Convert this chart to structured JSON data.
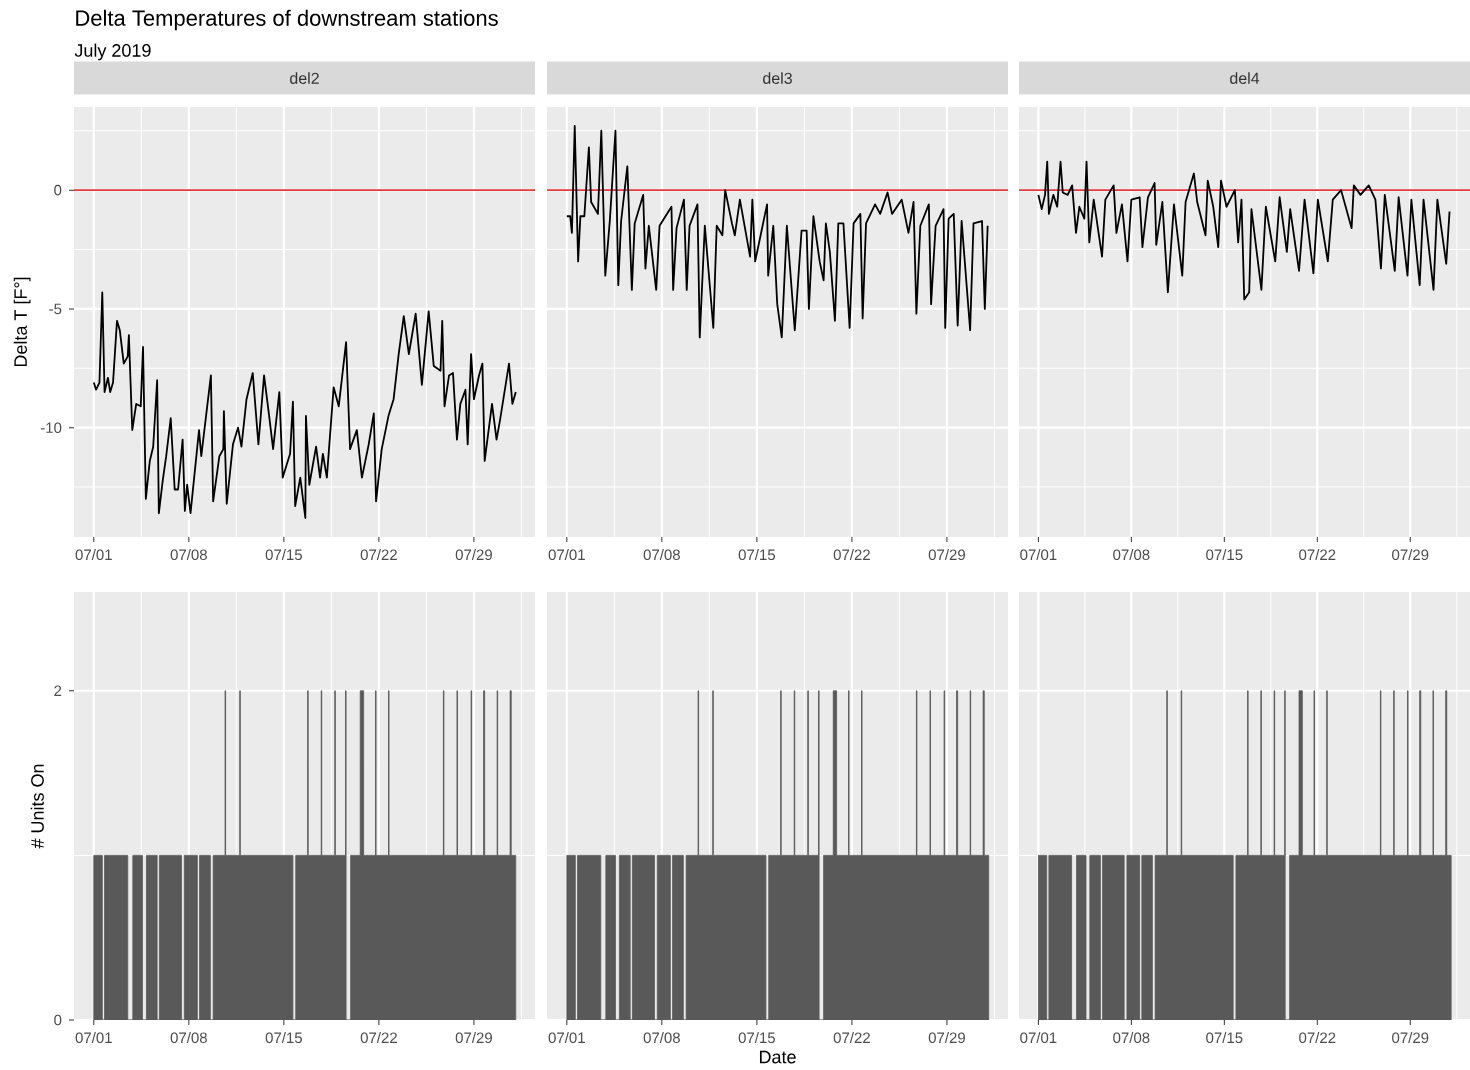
{
  "chart_data": [
    {
      "type": "line",
      "title": "del2",
      "ylabel": "Delta T [F°]",
      "annotations": [
        "Delta Temperatures of downstream stations",
        "July 2019"
      ],
      "color": "#000000",
      "x": [
        "2019-07-01T00:00",
        "2019-07-01T04:00",
        "2019-07-01T10:00",
        "2019-07-01T15:00",
        "2019-07-01T19:00",
        "2019-07-02T01:00",
        "2019-07-02T05:00",
        "2019-07-02T10:00",
        "2019-07-02T17:00",
        "2019-07-02T22:00",
        "2019-07-03T05:00",
        "2019-07-03T12:00",
        "2019-07-03T14:00",
        "2019-07-03T20:00",
        "2019-07-04T03:00",
        "2019-07-04T11:00",
        "2019-07-04T15:00",
        "2019-07-04T20:00",
        "2019-07-05T03:00",
        "2019-07-05T09:00",
        "2019-07-05T16:00",
        "2019-07-05T19:00",
        "2019-07-06T02:00",
        "2019-07-06T08:00",
        "2019-07-06T16:00",
        "2019-07-06T23:00",
        "2019-07-07T05:00",
        "2019-07-07T13:00",
        "2019-07-07T17:00",
        "2019-07-07T21:00",
        "2019-07-08T03:00",
        "2019-07-08T18:00",
        "2019-07-08T22:00",
        "2019-07-09T07:00",
        "2019-07-09T15:00",
        "2019-07-09T19:00",
        "2019-07-10T06:00",
        "2019-07-10T13:00",
        "2019-07-10T14:00",
        "2019-07-10T19:00",
        "2019-07-11T06:00",
        "2019-07-11T15:00",
        "2019-07-11T21:00",
        "2019-07-12T06:00",
        "2019-07-12T17:00",
        "2019-07-13T03:00",
        "2019-07-13T13:00",
        "2019-07-13T22:00",
        "2019-07-14T05:00",
        "2019-07-14T16:00",
        "2019-07-14T22:00",
        "2019-07-15T11:00",
        "2019-07-15T16:00",
        "2019-07-15T20:00",
        "2019-07-16T05:00",
        "2019-07-16T14:00",
        "2019-07-16T15:00",
        "2019-07-16T21:00",
        "2019-07-17T09:00",
        "2019-07-17T16:00",
        "2019-07-17T21:00",
        "2019-07-18T04:00",
        "2019-07-18T16:00",
        "2019-07-19T01:00",
        "2019-07-19T14:00",
        "2019-07-19T21:00",
        "2019-07-20T09:00",
        "2019-07-20T18:00",
        "2019-07-21T06:00",
        "2019-07-21T15:00",
        "2019-07-21T19:00",
        "2019-07-22T05:00",
        "2019-07-22T17:00",
        "2019-07-23T02:00",
        "2019-07-23T11:00",
        "2019-07-23T20:00",
        "2019-07-24T05:00",
        "2019-07-24T17:00",
        "2019-07-25T04:00",
        "2019-07-25T16:00",
        "2019-07-26T01:00",
        "2019-07-26T13:00",
        "2019-07-26T16:00",
        "2019-07-26T20:00",
        "2019-07-27T04:00",
        "2019-07-27T11:00",
        "2019-07-27T18:00",
        "2019-07-28T00:00",
        "2019-07-28T09:00",
        "2019-07-28T13:00",
        "2019-07-28T19:00",
        "2019-07-29T00:00",
        "2019-07-29T09:00",
        "2019-07-29T15:00",
        "2019-07-29T19:00",
        "2019-07-30T08:00",
        "2019-07-30T16:00",
        "2019-07-30T22:00",
        "2019-07-31T14:00",
        "2019-07-31T20:00",
        "2019-08-01T02:00"
      ],
      "values": [
        -8.1,
        -8.4,
        -8.1,
        -4.3,
        -8.5,
        -7.9,
        -8.5,
        -8.1,
        -5.5,
        -5.9,
        -7.3,
        -7.0,
        -6.1,
        -10.1,
        -9.0,
        -9.1,
        -6.6,
        -13.0,
        -11.4,
        -10.8,
        -8.0,
        -13.6,
        -12.2,
        -11.2,
        -9.6,
        -12.6,
        -12.6,
        -10.5,
        -13.5,
        -12.4,
        -13.6,
        -10.1,
        -11.2,
        -9.4,
        -7.8,
        -13.1,
        -11.2,
        -10.9,
        -9.3,
        -13.2,
        -10.7,
        -10.0,
        -10.8,
        -8.8,
        -7.7,
        -10.7,
        -7.8,
        -9.5,
        -10.9,
        -8.5,
        -12.1,
        -11.1,
        -8.9,
        -13.3,
        -12.1,
        -13.8,
        -9.5,
        -12.4,
        -10.8,
        -12.1,
        -11.1,
        -12.1,
        -8.3,
        -9.1,
        -6.4,
        -10.9,
        -10.1,
        -12.1,
        -10.7,
        -9.4,
        -13.1,
        -10.9,
        -9.5,
        -8.8,
        -6.9,
        -5.3,
        -6.9,
        -5.2,
        -8.2,
        -5.1,
        -7.4,
        -7.6,
        -5.5,
        -9.1,
        -7.8,
        -7.7,
        -10.5,
        -9.0,
        -8.4,
        -10.7,
        -6.9,
        -8.8,
        -7.8,
        -7.3,
        -11.4,
        -9.0,
        -10.5,
        -9.7,
        -7.3,
        -9.0,
        -8.5
      ],
      "xlim": [
        "2019-06-29T13:00",
        "2019-08-02T12:00"
      ],
      "xticks": [
        {
          "value": "2019-07-01",
          "label": "07/01"
        },
        {
          "value": "2019-07-08",
          "label": "07/08"
        },
        {
          "value": "2019-07-15",
          "label": "07/15"
        },
        {
          "value": "2019-07-22",
          "label": "07/22"
        },
        {
          "value": "2019-07-29",
          "label": "07/29"
        }
      ],
      "ylim": [
        -14.6,
        3.5
      ],
      "yticks": [
        -10,
        -5,
        0
      ],
      "grid": true,
      "ref_lines": [
        {
          "axis": "y",
          "value": 0,
          "color": "#e0393e"
        }
      ]
    },
    {
      "type": "line",
      "title": "del3",
      "color": "#000000",
      "x": [
        "2019-07-01T00:00",
        "2019-07-01T06:00",
        "2019-07-01T09:00",
        "2019-07-01T14:00",
        "2019-07-01T20:00",
        "2019-07-02T00:00",
        "2019-07-02T07:00",
        "2019-07-02T15:00",
        "2019-07-02T19:00",
        "2019-07-03T07:00",
        "2019-07-03T13:00",
        "2019-07-03T20:00",
        "2019-07-04T04:00",
        "2019-07-04T14:00",
        "2019-07-04T19:00",
        "2019-07-05T00:00",
        "2019-07-05T11:00",
        "2019-07-05T19:00",
        "2019-07-06T00:00",
        "2019-07-06T15:00",
        "2019-07-06T19:00",
        "2019-07-07T01:00",
        "2019-07-07T14:00",
        "2019-07-07T20:00",
        "2019-07-08T17:00",
        "2019-07-08T20:00",
        "2019-07-09T02:00",
        "2019-07-09T15:00",
        "2019-07-09T20:00",
        "2019-07-10T01:00",
        "2019-07-10T15:00",
        "2019-07-10T19:00",
        "2019-07-11T04:00",
        "2019-07-11T19:00",
        "2019-07-12T01:00",
        "2019-07-12T11:00",
        "2019-07-12T16:00",
        "2019-07-13T04:00",
        "2019-07-13T09:00",
        "2019-07-13T18:00",
        "2019-07-14T12:00",
        "2019-07-14T16:00",
        "2019-07-14T21:00",
        "2019-07-15T18:00",
        "2019-07-15T20:00",
        "2019-07-16T05:00",
        "2019-07-16T12:00",
        "2019-07-16T20:00",
        "2019-07-17T05:00",
        "2019-07-17T19:00",
        "2019-07-18T07:00",
        "2019-07-18T16:00",
        "2019-07-18T20:00",
        "2019-07-19T04:00",
        "2019-07-19T15:00",
        "2019-07-19T22:00",
        "2019-07-20T02:00",
        "2019-07-20T09:00",
        "2019-07-20T18:00",
        "2019-07-21T00:00",
        "2019-07-21T09:00",
        "2019-07-21T20:00",
        "2019-07-22T03:00",
        "2019-07-22T15:00",
        "2019-07-22T19:00",
        "2019-07-23T01:00",
        "2019-07-23T17:00",
        "2019-07-24T02:00",
        "2019-07-24T15:00",
        "2019-07-24T23:00",
        "2019-07-25T16:00",
        "2019-07-26T04:00",
        "2019-07-26T13:00",
        "2019-07-26T18:00",
        "2019-07-27T01:00",
        "2019-07-27T16:00",
        "2019-07-27T20:00",
        "2019-07-28T04:00",
        "2019-07-28T18:00",
        "2019-07-28T21:00",
        "2019-07-29T03:00",
        "2019-07-29T12:00",
        "2019-07-29T19:00",
        "2019-07-30T02:00",
        "2019-07-30T17:00",
        "2019-07-30T23:00",
        "2019-07-31T14:00",
        "2019-07-31T19:00",
        "2019-08-01T00:00"
      ],
      "values": [
        -1.1,
        -1.1,
        -1.8,
        2.7,
        -3.0,
        -1.1,
        -1.1,
        1.8,
        -0.5,
        -1.0,
        2.5,
        -3.6,
        -1.3,
        2.5,
        -4.0,
        -1.3,
        1.0,
        -4.2,
        -1.4,
        -0.2,
        -3.3,
        -1.5,
        -4.2,
        -1.5,
        -0.7,
        -4.2,
        -1.6,
        -0.4,
        -4.2,
        -1.5,
        -0.6,
        -6.2,
        -1.5,
        -5.8,
        -1.5,
        -1.9,
        0.0,
        -1.4,
        -1.9,
        -0.4,
        -2.8,
        -0.4,
        -3.0,
        -0.6,
        -3.6,
        -1.5,
        -4.8,
        -6.2,
        -1.5,
        -5.9,
        -1.7,
        -1.7,
        -5.0,
        -1.1,
        -3.0,
        -3.8,
        -1.4,
        -2.6,
        -5.5,
        -1.4,
        -1.4,
        -5.8,
        -1.4,
        -1.0,
        -5.4,
        -1.4,
        -0.6,
        -1.0,
        -0.1,
        -1.0,
        -0.4,
        -1.8,
        -0.5,
        -5.2,
        -1.5,
        -0.6,
        -4.8,
        -1.5,
        -0.8,
        -5.8,
        -1.2,
        -1.0,
        -5.7,
        -1.3,
        -5.9,
        -1.4,
        -1.3,
        -5.0,
        -1.5
      ],
      "xlim": [
        "2019-06-29T13:00",
        "2019-08-02T12:00"
      ],
      "xticks": [
        {
          "value": "2019-07-01",
          "label": "07/01"
        },
        {
          "value": "2019-07-08",
          "label": "07/08"
        },
        {
          "value": "2019-07-15",
          "label": "07/15"
        },
        {
          "value": "2019-07-22",
          "label": "07/22"
        },
        {
          "value": "2019-07-29",
          "label": "07/29"
        }
      ],
      "ylim": [
        -14.6,
        3.5
      ],
      "yticks": [
        -10,
        -5,
        0
      ],
      "grid": true,
      "tick_labels": "x",
      "ref_lines": [
        {
          "axis": "y",
          "value": 0,
          "color": "#e0393e"
        }
      ]
    },
    {
      "type": "line",
      "title": "del4",
      "color": "#000000",
      "x": [
        "2019-07-01T00:00",
        "2019-07-01T06:00",
        "2019-07-01T12:00",
        "2019-07-01T16:00",
        "2019-07-01T19:00",
        "2019-07-02T03:00",
        "2019-07-02T10:00",
        "2019-07-02T16:00",
        "2019-07-02T20:00",
        "2019-07-03T05:00",
        "2019-07-03T13:00",
        "2019-07-03T20:00",
        "2019-07-04T02:00",
        "2019-07-04T11:00",
        "2019-07-04T15:00",
        "2019-07-04T20:00",
        "2019-07-05T04:00",
        "2019-07-05T19:00",
        "2019-07-06T01:00",
        "2019-07-06T16:00",
        "2019-07-06T21:00",
        "2019-07-07T07:00",
        "2019-07-07T17:00",
        "2019-07-08T00:00",
        "2019-07-08T15:00",
        "2019-07-08T20:00",
        "2019-07-09T06:00",
        "2019-07-09T18:00",
        "2019-07-09T21:00",
        "2019-07-10T08:00",
        "2019-07-10T18:00",
        "2019-07-11T05:00",
        "2019-07-11T20:00",
        "2019-07-12T02:00",
        "2019-07-12T17:00",
        "2019-07-12T23:00",
        "2019-07-13T14:00",
        "2019-07-13T18:00",
        "2019-07-14T04:00",
        "2019-07-14T13:00",
        "2019-07-14T18:00",
        "2019-07-15T04:00",
        "2019-07-15T19:00",
        "2019-07-16T01:00",
        "2019-07-16T07:00",
        "2019-07-16T12:00",
        "2019-07-16T21:00",
        "2019-07-17T01:00",
        "2019-07-17T19:00",
        "2019-07-18T03:00",
        "2019-07-18T20:00",
        "2019-07-19T04:00",
        "2019-07-19T17:00",
        "2019-07-19T23:00",
        "2019-07-20T15:00",
        "2019-07-21T01:00",
        "2019-07-21T17:00",
        "2019-07-22T01:00",
        "2019-07-22T19:00",
        "2019-07-23T04:00",
        "2019-07-23T19:00",
        "2019-07-24T14:00",
        "2019-07-24T18:00",
        "2019-07-25T06:00",
        "2019-07-25T21:00",
        "2019-07-26T09:00",
        "2019-07-26T19:00",
        "2019-07-27T02:00",
        "2019-07-27T20:00",
        "2019-07-28T03:00",
        "2019-07-28T19:00",
        "2019-07-29T02:00",
        "2019-07-29T17:00",
        "2019-07-30T00:00",
        "2019-07-30T18:00",
        "2019-07-31T01:00",
        "2019-07-31T17:00",
        "2019-07-31T23:00"
      ],
      "values": [
        -0.2,
        -0.8,
        -0.2,
        1.2,
        -1.0,
        -0.2,
        -0.7,
        1.2,
        -0.1,
        -0.2,
        0.2,
        -1.8,
        -0.7,
        -1.2,
        1.2,
        -2.2,
        -0.4,
        -2.8,
        -0.4,
        0.2,
        -1.8,
        -0.6,
        -3.0,
        -0.4,
        -0.3,
        -2.4,
        -0.3,
        0.3,
        -2.3,
        -0.5,
        -4.3,
        -0.6,
        -3.6,
        -0.5,
        0.7,
        -0.5,
        -1.9,
        0.4,
        -0.7,
        -2.4,
        0.4,
        -0.7,
        0.0,
        -2.2,
        -0.4,
        -4.6,
        -4.3,
        -0.8,
        -4.2,
        -0.7,
        -3.0,
        -0.3,
        -2.6,
        -0.8,
        -3.4,
        -0.4,
        -3.5,
        -0.4,
        -3.0,
        -0.4,
        0.0,
        -1.6,
        0.2,
        -0.2,
        0.2,
        -0.4,
        -3.3,
        -0.2,
        -3.4,
        -0.3,
        -3.6,
        -0.4,
        -4.0,
        -0.4,
        -4.2,
        -0.4,
        -3.1,
        -0.9
      ],
      "xlim": [
        "2019-06-29T13:00",
        "2019-08-02T12:00"
      ],
      "xticks": [
        {
          "value": "2019-07-01",
          "label": "07/01"
        },
        {
          "value": "2019-07-08",
          "label": "07/08"
        },
        {
          "value": "2019-07-15",
          "label": "07/15"
        },
        {
          "value": "2019-07-22",
          "label": "07/22"
        },
        {
          "value": "2019-07-29",
          "label": "07/29"
        }
      ],
      "ylim": [
        -14.6,
        3.5
      ],
      "yticks": [
        -10,
        -5,
        0
      ],
      "grid": true,
      "tick_labels": "x",
      "ref_lines": [
        {
          "axis": "y",
          "value": 0,
          "color": "#e0393e"
        }
      ]
    },
    {
      "type": "area",
      "ylabel": "# Units On",
      "color": "#595959",
      "x": [
        "2019-07-01T00:00",
        "2019-07-01T15:00",
        "2019-07-01T15:00",
        "2019-07-01T19:00",
        "2019-07-01T19:00",
        "2019-07-03T12:00",
        "2019-07-03T12:00",
        "2019-07-03T21:00",
        "2019-07-03T21:00",
        "2019-07-04T14:00",
        "2019-07-04T14:00",
        "2019-07-04T21:00",
        "2019-07-04T21:00",
        "2019-07-05T16:00",
        "2019-07-05T16:00",
        "2019-07-05T20:00",
        "2019-07-05T20:00",
        "2019-07-07T11:00",
        "2019-07-07T11:00",
        "2019-07-07T16:00",
        "2019-07-07T16:00",
        "2019-07-08T15:00",
        "2019-07-08T15:00",
        "2019-07-08T19:00",
        "2019-07-08T19:00",
        "2019-07-09T14:00",
        "2019-07-09T14:00",
        "2019-07-09T19:00",
        "2019-07-09T19:00",
        "2019-07-10T16:00",
        "2019-07-10T16:00",
        "2019-07-10T17:00",
        "2019-07-10T17:00",
        "2019-07-11T18:00",
        "2019-07-11T18:00",
        "2019-07-11T19:00",
        "2019-07-11T19:00",
        "2019-07-15T16:00",
        "2019-07-15T16:00",
        "2019-07-15T21:00",
        "2019-07-15T21:00",
        "2019-07-16T18:00",
        "2019-07-16T18:00",
        "2019-07-16T19:00",
        "2019-07-16T19:00",
        "2019-07-17T18:00",
        "2019-07-17T18:00",
        "2019-07-17T19:00",
        "2019-07-17T19:00",
        "2019-07-18T18:00",
        "2019-07-18T18:00",
        "2019-07-18T19:00",
        "2019-07-18T19:00",
        "2019-07-19T13:00",
        "2019-07-19T13:00",
        "2019-07-19T14:00",
        "2019-07-19T14:00",
        "2019-07-19T22:00",
        "2019-07-19T22:00",
        "2019-07-20T15:00",
        "2019-07-20T15:00",
        "2019-07-20T21:00",
        "2019-07-20T21:00",
        "2019-07-21T18:00",
        "2019-07-21T18:00",
        "2019-07-21T19:00",
        "2019-07-21T19:00",
        "2019-07-22T17:00",
        "2019-07-22T17:00",
        "2019-07-22T18:00",
        "2019-07-22T18:00",
        "2019-07-26T18:00",
        "2019-07-26T18:00",
        "2019-07-26T19:00",
        "2019-07-26T19:00",
        "2019-07-27T18:00",
        "2019-07-27T18:00",
        "2019-07-27T19:00",
        "2019-07-27T19:00",
        "2019-07-28T19:00",
        "2019-07-28T19:00",
        "2019-07-28T20:00",
        "2019-07-28T20:00",
        "2019-07-29T17:00",
        "2019-07-29T17:00",
        "2019-07-29T19:00",
        "2019-07-29T19:00",
        "2019-07-30T17:00",
        "2019-07-30T17:00",
        "2019-07-30T18:00",
        "2019-07-30T18:00",
        "2019-07-31T16:00",
        "2019-07-31T16:00",
        "2019-07-31T18:00",
        "2019-07-31T18:00",
        "2019-08-01T02:00"
      ],
      "values": [
        1,
        1,
        0,
        0,
        1,
        1,
        0,
        0,
        1,
        1,
        0,
        0,
        1,
        1,
        0,
        0,
        1,
        1,
        0,
        0,
        1,
        1,
        0,
        0,
        1,
        1,
        0,
        0,
        1,
        1,
        2,
        2,
        1,
        1,
        2,
        2,
        1,
        1,
        0,
        0,
        1,
        1,
        2,
        2,
        1,
        1,
        2,
        2,
        1,
        1,
        2,
        2,
        1,
        1,
        2,
        2,
        0,
        0,
        1,
        1,
        2,
        2,
        1,
        1,
        2,
        2,
        1,
        1,
        2,
        2,
        1,
        1,
        2,
        2,
        1,
        1,
        2,
        2,
        1,
        1,
        2,
        2,
        1,
        1,
        2,
        2,
        1,
        1,
        2,
        2,
        1,
        1,
        2,
        2,
        1,
        1
      ],
      "xlim": [
        "2019-06-29T13:00",
        "2019-08-02T12:00"
      ],
      "xticks": [
        {
          "value": "2019-07-01",
          "label": "07/01"
        },
        {
          "value": "2019-07-08",
          "label": "07/08"
        },
        {
          "value": "2019-07-15",
          "label": "07/15"
        },
        {
          "value": "2019-07-22",
          "label": "07/22"
        },
        {
          "value": "2019-07-29",
          "label": "07/29"
        }
      ],
      "ylim": [
        0,
        2.6
      ],
      "yticks": [
        0,
        2
      ],
      "grid": true
    },
    {
      "type": "area",
      "xlabel": "Date",
      "color": "#595959",
      "x": [
        "2019-07-01T00:00",
        "2019-07-01T15:00",
        "2019-07-01T15:00",
        "2019-07-01T19:00",
        "2019-07-01T19:00",
        "2019-07-03T12:00",
        "2019-07-03T12:00",
        "2019-07-03T21:00",
        "2019-07-03T21:00",
        "2019-07-04T14:00",
        "2019-07-04T14:00",
        "2019-07-04T21:00",
        "2019-07-04T21:00",
        "2019-07-05T16:00",
        "2019-07-05T16:00",
        "2019-07-05T20:00",
        "2019-07-05T20:00",
        "2019-07-07T11:00",
        "2019-07-07T11:00",
        "2019-07-07T16:00",
        "2019-07-07T16:00",
        "2019-07-08T15:00",
        "2019-07-08T15:00",
        "2019-07-08T19:00",
        "2019-07-08T19:00",
        "2019-07-09T14:00",
        "2019-07-09T14:00",
        "2019-07-09T19:00",
        "2019-07-09T19:00",
        "2019-07-10T16:00",
        "2019-07-10T16:00",
        "2019-07-10T17:00",
        "2019-07-10T17:00",
        "2019-07-11T18:00",
        "2019-07-11T18:00",
        "2019-07-11T19:00",
        "2019-07-11T19:00",
        "2019-07-15T16:00",
        "2019-07-15T16:00",
        "2019-07-15T21:00",
        "2019-07-15T21:00",
        "2019-07-16T18:00",
        "2019-07-16T18:00",
        "2019-07-16T19:00",
        "2019-07-16T19:00",
        "2019-07-17T18:00",
        "2019-07-17T18:00",
        "2019-07-17T19:00",
        "2019-07-17T19:00",
        "2019-07-18T18:00",
        "2019-07-18T18:00",
        "2019-07-18T19:00",
        "2019-07-18T19:00",
        "2019-07-19T13:00",
        "2019-07-19T13:00",
        "2019-07-19T14:00",
        "2019-07-19T14:00",
        "2019-07-19T22:00",
        "2019-07-19T22:00",
        "2019-07-20T15:00",
        "2019-07-20T15:00",
        "2019-07-20T21:00",
        "2019-07-20T21:00",
        "2019-07-21T18:00",
        "2019-07-21T18:00",
        "2019-07-21T19:00",
        "2019-07-21T19:00",
        "2019-07-22T17:00",
        "2019-07-22T17:00",
        "2019-07-22T18:00",
        "2019-07-22T18:00",
        "2019-07-26T18:00",
        "2019-07-26T18:00",
        "2019-07-26T19:00",
        "2019-07-26T19:00",
        "2019-07-27T18:00",
        "2019-07-27T18:00",
        "2019-07-27T19:00",
        "2019-07-27T19:00",
        "2019-07-28T19:00",
        "2019-07-28T19:00",
        "2019-07-28T20:00",
        "2019-07-28T20:00",
        "2019-07-29T17:00",
        "2019-07-29T17:00",
        "2019-07-29T19:00",
        "2019-07-29T19:00",
        "2019-07-30T17:00",
        "2019-07-30T17:00",
        "2019-07-30T18:00",
        "2019-07-30T18:00",
        "2019-07-31T16:00",
        "2019-07-31T16:00",
        "2019-07-31T18:00",
        "2019-07-31T18:00",
        "2019-08-01T02:00"
      ],
      "values": [
        1,
        1,
        0,
        0,
        1,
        1,
        0,
        0,
        1,
        1,
        0,
        0,
        1,
        1,
        0,
        0,
        1,
        1,
        0,
        0,
        1,
        1,
        0,
        0,
        1,
        1,
        0,
        0,
        1,
        1,
        2,
        2,
        1,
        1,
        2,
        2,
        1,
        1,
        0,
        0,
        1,
        1,
        2,
        2,
        1,
        1,
        2,
        2,
        1,
        1,
        2,
        2,
        1,
        1,
        2,
        2,
        0,
        0,
        1,
        1,
        2,
        2,
        1,
        1,
        2,
        2,
        1,
        1,
        2,
        2,
        1,
        1,
        2,
        2,
        1,
        1,
        2,
        2,
        1,
        1,
        2,
        2,
        1,
        1,
        2,
        2,
        1,
        1,
        2,
        2,
        1,
        1,
        2,
        2,
        1,
        1
      ],
      "xlim": [
        "2019-06-29T13:00",
        "2019-08-02T12:00"
      ],
      "xticks": [
        {
          "value": "2019-07-01",
          "label": "07/01"
        },
        {
          "value": "2019-07-08",
          "label": "07/08"
        },
        {
          "value": "2019-07-15",
          "label": "07/15"
        },
        {
          "value": "2019-07-22",
          "label": "07/22"
        },
        {
          "value": "2019-07-29",
          "label": "07/29"
        }
      ],
      "ylim": [
        0,
        2.6
      ],
      "yticks": [
        0,
        2
      ],
      "grid": true,
      "tick_labels": "x"
    },
    {
      "type": "area",
      "color": "#595959",
      "x": [
        "2019-07-01T00:00",
        "2019-07-01T15:00",
        "2019-07-01T15:00",
        "2019-07-01T19:00",
        "2019-07-01T19:00",
        "2019-07-03T12:00",
        "2019-07-03T12:00",
        "2019-07-03T21:00",
        "2019-07-03T21:00",
        "2019-07-04T14:00",
        "2019-07-04T14:00",
        "2019-07-04T21:00",
        "2019-07-04T21:00",
        "2019-07-05T16:00",
        "2019-07-05T16:00",
        "2019-07-05T20:00",
        "2019-07-05T20:00",
        "2019-07-07T11:00",
        "2019-07-07T11:00",
        "2019-07-07T16:00",
        "2019-07-07T16:00",
        "2019-07-08T15:00",
        "2019-07-08T15:00",
        "2019-07-08T19:00",
        "2019-07-08T19:00",
        "2019-07-09T14:00",
        "2019-07-09T14:00",
        "2019-07-09T19:00",
        "2019-07-09T19:00",
        "2019-07-10T16:00",
        "2019-07-10T16:00",
        "2019-07-10T17:00",
        "2019-07-10T17:00",
        "2019-07-11T18:00",
        "2019-07-11T18:00",
        "2019-07-11T19:00",
        "2019-07-11T19:00",
        "2019-07-15T16:00",
        "2019-07-15T16:00",
        "2019-07-15T21:00",
        "2019-07-15T21:00",
        "2019-07-16T18:00",
        "2019-07-16T18:00",
        "2019-07-16T19:00",
        "2019-07-16T19:00",
        "2019-07-17T18:00",
        "2019-07-17T18:00",
        "2019-07-17T19:00",
        "2019-07-17T19:00",
        "2019-07-18T18:00",
        "2019-07-18T18:00",
        "2019-07-18T19:00",
        "2019-07-18T19:00",
        "2019-07-19T13:00",
        "2019-07-19T13:00",
        "2019-07-19T14:00",
        "2019-07-19T14:00",
        "2019-07-19T22:00",
        "2019-07-19T22:00",
        "2019-07-20T15:00",
        "2019-07-20T15:00",
        "2019-07-20T21:00",
        "2019-07-20T21:00",
        "2019-07-21T18:00",
        "2019-07-21T18:00",
        "2019-07-21T19:00",
        "2019-07-21T19:00",
        "2019-07-22T17:00",
        "2019-07-22T17:00",
        "2019-07-22T18:00",
        "2019-07-22T18:00",
        "2019-07-26T18:00",
        "2019-07-26T18:00",
        "2019-07-26T19:00",
        "2019-07-26T19:00",
        "2019-07-27T18:00",
        "2019-07-27T18:00",
        "2019-07-27T19:00",
        "2019-07-27T19:00",
        "2019-07-28T19:00",
        "2019-07-28T19:00",
        "2019-07-28T20:00",
        "2019-07-28T20:00",
        "2019-07-29T17:00",
        "2019-07-29T17:00",
        "2019-07-29T19:00",
        "2019-07-29T19:00",
        "2019-07-30T17:00",
        "2019-07-30T17:00",
        "2019-07-30T18:00",
        "2019-07-30T18:00",
        "2019-07-31T16:00",
        "2019-07-31T16:00",
        "2019-07-31T18:00",
        "2019-07-31T18:00",
        "2019-08-01T02:00"
      ],
      "values": [
        1,
        1,
        0,
        0,
        1,
        1,
        0,
        0,
        1,
        1,
        0,
        0,
        1,
        1,
        0,
        0,
        1,
        1,
        0,
        0,
        1,
        1,
        0,
        0,
        1,
        1,
        0,
        0,
        1,
        1,
        2,
        2,
        1,
        1,
        2,
        2,
        1,
        1,
        0,
        0,
        1,
        1,
        2,
        2,
        1,
        1,
        2,
        2,
        1,
        1,
        2,
        2,
        1,
        1,
        2,
        2,
        0,
        0,
        1,
        1,
        2,
        2,
        1,
        1,
        2,
        2,
        1,
        1,
        2,
        2,
        1,
        1,
        2,
        2,
        1,
        1,
        2,
        2,
        1,
        1,
        2,
        2,
        1,
        1,
        2,
        2,
        1,
        1,
        2,
        2,
        1,
        1,
        2,
        2,
        1,
        1
      ],
      "xlim": [
        "2019-06-29T13:00",
        "2019-08-02T12:00"
      ],
      "xticks": [
        {
          "value": "2019-07-01",
          "label": "07/01"
        },
        {
          "value": "2019-07-08",
          "label": "07/08"
        },
        {
          "value": "2019-07-15",
          "label": "07/15"
        },
        {
          "value": "2019-07-22",
          "label": "07/22"
        },
        {
          "value": "2019-07-29",
          "label": "07/29"
        }
      ],
      "ylim": [
        0,
        2.6
      ],
      "yticks": [
        0,
        2
      ],
      "grid": true,
      "tick_labels": "x"
    }
  ]
}
